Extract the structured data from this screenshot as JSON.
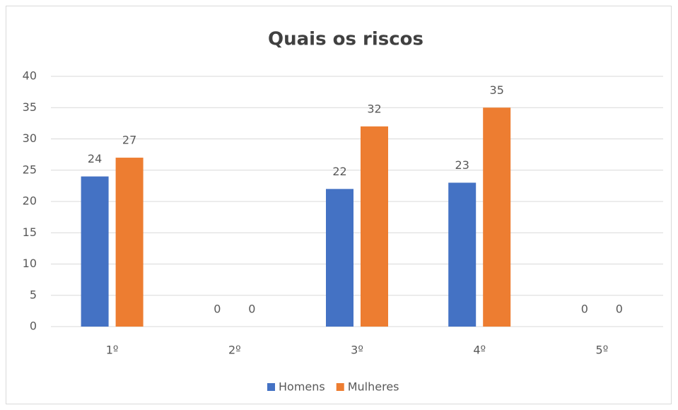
{
  "chart_data": {
    "type": "bar",
    "title": "Quais os riscos",
    "categories": [
      "1º",
      "2º",
      "3º",
      "4º",
      "5º"
    ],
    "series": [
      {
        "name": "Homens",
        "color": "#4472c4",
        "values": [
          24,
          0,
          22,
          23,
          0
        ]
      },
      {
        "name": "Mulheres",
        "color": "#ed7d31",
        "values": [
          27,
          0,
          32,
          35,
          0
        ]
      }
    ],
    "ylim": [
      0,
      40
    ],
    "yticks": [
      0,
      5,
      10,
      15,
      20,
      25,
      30,
      35,
      40
    ],
    "grid": true,
    "legend": "bottom"
  }
}
